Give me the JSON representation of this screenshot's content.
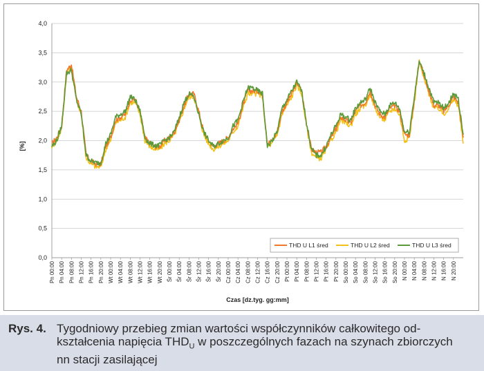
{
  "chart_data": {
    "type": "line",
    "title": "",
    "xlabel": "Czas [dz.tyg. gg:mm]",
    "ylabel": "[%]",
    "ylim": [
      0,
      4
    ],
    "yticks": [
      "0,0",
      "0,5",
      "1,0",
      "1,5",
      "2,0",
      "2,5",
      "3,0",
      "3,5",
      "4,0"
    ],
    "grid": true,
    "legend_position": "bottom-right",
    "x_tick_labels": [
      "Pn 00:00",
      "Pn 04:00",
      "Pn 08:00",
      "Pn 12:00",
      "Pn 16:00",
      "Pn 20:00",
      "Wt 00:00",
      "Wt 04:00",
      "Wt 08:00",
      "Wt 12:00",
      "Wt 16:00",
      "Wt 20:00",
      "Śr 00:00",
      "Śr 04:00",
      "Śr 08:00",
      "Śr 12:00",
      "Śr 16:00",
      "Śr 20:00",
      "Cz 00:00",
      "Cz 04:00",
      "Cz 08:00",
      "Cz 12:00",
      "Cz 16:00",
      "Cz 20:00",
      "Pt 00:00",
      "Pt 04:00",
      "Pt 08:00",
      "Pt 12:00",
      "Pt 16:00",
      "Pt 20:00",
      "So 00:00",
      "So 04:00",
      "So 08:00",
      "So 12:00",
      "So 16:00",
      "So 20:00",
      "N 00:00",
      "N 04:00",
      "N 08:00",
      "N 12:00",
      "N 16:00",
      "N 20:00"
    ],
    "x_hours": [
      0,
      2,
      4,
      6,
      8,
      10,
      12,
      14,
      16,
      18,
      20,
      22,
      24,
      26,
      28,
      30,
      32,
      34,
      36,
      38,
      40,
      42,
      44,
      46,
      48,
      50,
      52,
      54,
      56,
      58,
      60,
      62,
      64,
      66,
      68,
      70,
      72,
      74,
      76,
      78,
      80,
      82,
      84,
      86,
      88,
      90,
      92,
      94,
      96,
      98,
      100,
      102,
      104,
      106,
      108,
      110,
      112,
      114,
      116,
      118,
      120,
      122,
      124,
      126,
      128,
      130,
      132,
      134,
      136,
      138,
      140,
      142,
      144,
      146,
      148,
      150,
      152,
      154,
      156,
      158,
      160,
      162,
      164,
      166,
      168
    ],
    "x_max_hours": 168,
    "series": [
      {
        "name": "THD U L1 śred",
        "color": "#f07828",
        "values": [
          1.95,
          2.05,
          2.25,
          3.2,
          3.3,
          2.75,
          2.5,
          1.75,
          1.65,
          1.6,
          1.6,
          1.9,
          2.05,
          2.35,
          2.4,
          2.45,
          2.7,
          2.7,
          2.5,
          2.05,
          1.95,
          1.9,
          1.9,
          2.0,
          2.05,
          2.15,
          2.35,
          2.6,
          2.8,
          2.8,
          2.5,
          2.15,
          2.0,
          1.9,
          1.95,
          2.0,
          2.05,
          2.2,
          2.3,
          2.6,
          2.85,
          2.85,
          2.85,
          2.8,
          1.95,
          2.0,
          2.15,
          2.5,
          2.65,
          2.8,
          3.0,
          2.85,
          2.3,
          1.85,
          1.8,
          1.8,
          1.9,
          2.05,
          2.2,
          2.4,
          2.35,
          2.3,
          2.5,
          2.6,
          2.65,
          2.85,
          2.6,
          2.45,
          2.4,
          2.55,
          2.6,
          2.5,
          2.1,
          2.1,
          2.7,
          3.4,
          3.1,
          2.85,
          2.6,
          2.6,
          2.5,
          2.6,
          2.75,
          2.65,
          2.05
        ]
      },
      {
        "name": "THD U L2 śred",
        "color": "#f2c21c",
        "values": [
          1.9,
          2.0,
          2.2,
          3.15,
          3.25,
          2.7,
          2.45,
          1.7,
          1.6,
          1.55,
          1.55,
          1.85,
          2.0,
          2.3,
          2.35,
          2.4,
          2.65,
          2.65,
          2.45,
          2.0,
          1.9,
          1.85,
          1.85,
          1.95,
          2.0,
          2.1,
          2.3,
          2.55,
          2.75,
          2.75,
          2.45,
          2.1,
          1.95,
          1.85,
          1.9,
          1.95,
          2.0,
          2.15,
          2.25,
          2.55,
          2.8,
          2.8,
          2.8,
          2.75,
          1.9,
          1.95,
          2.1,
          2.45,
          2.6,
          2.75,
          2.95,
          2.8,
          2.25,
          1.8,
          1.7,
          1.7,
          1.85,
          2.0,
          2.15,
          2.35,
          2.3,
          2.25,
          2.45,
          2.55,
          2.6,
          2.8,
          2.55,
          2.4,
          2.35,
          2.5,
          2.55,
          2.45,
          2.0,
          2.05,
          2.65,
          3.35,
          3.05,
          2.8,
          2.55,
          2.55,
          2.45,
          2.55,
          2.7,
          2.6,
          1.95
        ]
      },
      {
        "name": "THD U L3 śred",
        "color": "#5a9a3a",
        "values": [
          1.9,
          2.0,
          2.25,
          3.15,
          3.2,
          2.7,
          2.45,
          1.75,
          1.65,
          1.62,
          1.62,
          1.95,
          2.1,
          2.4,
          2.45,
          2.5,
          2.75,
          2.7,
          2.5,
          2.05,
          1.95,
          1.92,
          1.92,
          2.0,
          2.05,
          2.15,
          2.4,
          2.65,
          2.8,
          2.75,
          2.45,
          2.15,
          2.0,
          1.9,
          1.95,
          2.0,
          2.05,
          2.25,
          2.35,
          2.65,
          2.9,
          2.9,
          2.85,
          2.8,
          1.9,
          2.0,
          2.15,
          2.55,
          2.7,
          2.85,
          3.0,
          2.85,
          2.3,
          1.85,
          1.75,
          1.75,
          1.9,
          2.1,
          2.25,
          2.45,
          2.4,
          2.35,
          2.55,
          2.65,
          2.7,
          2.9,
          2.65,
          2.5,
          2.45,
          2.6,
          2.65,
          2.55,
          2.15,
          2.15,
          2.75,
          3.35,
          3.15,
          2.9,
          2.65,
          2.65,
          2.55,
          2.65,
          2.8,
          2.7,
          2.1
        ]
      }
    ]
  },
  "caption": {
    "label": "Rys. 4.",
    "line1": "Tygodniowy przebieg zmian wartości współczynników całkowitego od-",
    "line2_pre": "kształcenia napięcia THD",
    "line2_sub": "U",
    "line2_post": " w poszczególnych fazach na szynach zbiorczych",
    "line3": "nn stacji zasilającej"
  }
}
